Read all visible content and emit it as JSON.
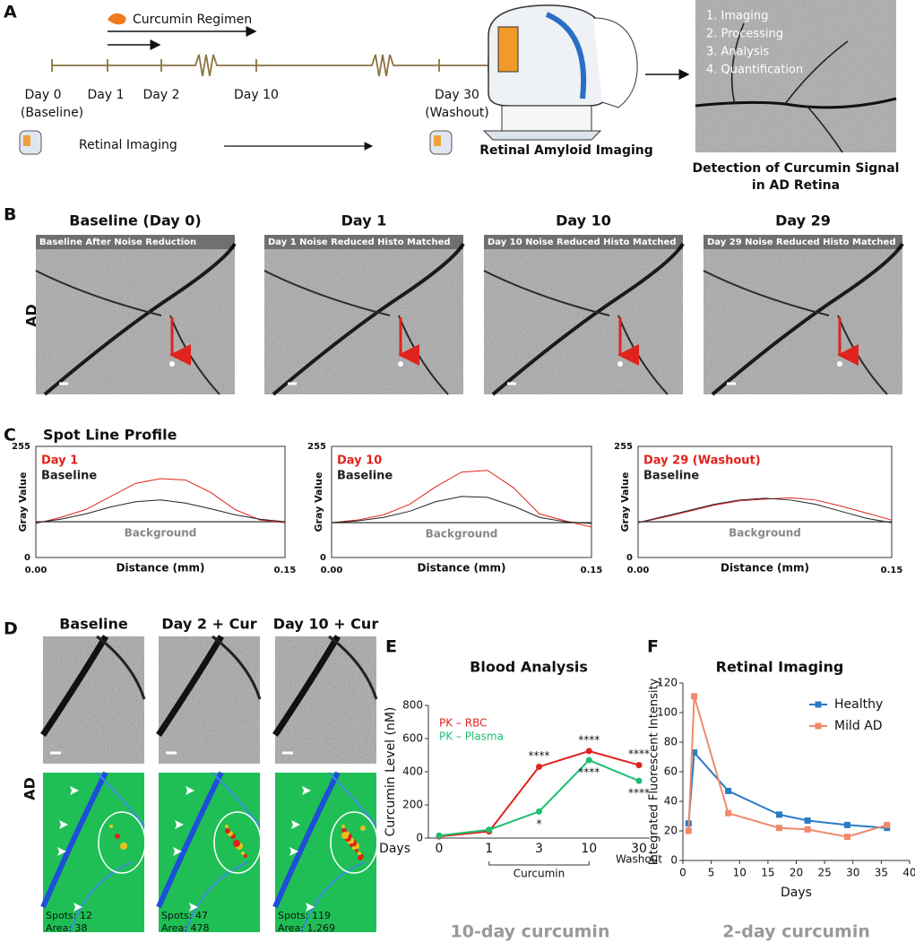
{
  "panel_labels": [
    "A",
    "B",
    "C",
    "D",
    "E",
    "F"
  ],
  "panel_a": {
    "regimen": "Curcumin Regimen",
    "timeline": [
      "Day 0",
      "Day 1",
      "Day 2",
      "Day 10",
      "Day 30"
    ],
    "timeline_notes": [
      "(Baseline)",
      "(Washout)"
    ],
    "imaging": "Retinal Imaging",
    "device_caption": "Retinal Amyloid Imaging",
    "steps": [
      "1. Imaging",
      "2. Processing",
      "3. Analysis",
      "4. Quantification"
    ],
    "detection_caption": [
      "Detection of Curcumin Signal",
      "in AD Retina"
    ]
  },
  "panel_b": {
    "row_label": "AD",
    "titles": [
      "Baseline (Day 0)",
      "Day 1",
      "Day 10",
      "Day 29"
    ],
    "captions": [
      "Baseline After Noise Reduction",
      "Day 1 Noise Reduced Histo Matched",
      "Day 10 Noise Reduced Histo Matched",
      "Day 29 Noise Reduced Histo Matched"
    ]
  },
  "panel_c": {
    "title": "Spot Line Profile"
  },
  "panel_d": {
    "row_label": "AD",
    "titles": [
      "Baseline",
      "Day 2 + Cur",
      "Day 10 + Cur"
    ],
    "stats": [
      [
        "Spots: 12",
        "Area: 38"
      ],
      [
        "Spots: 47",
        "Area: 478"
      ],
      [
        "Spots: 119",
        "Area: 1,269"
      ]
    ]
  },
  "chart_data": [
    {
      "type": "line",
      "y_label": "Gray Value",
      "x_label": "Distance (mm)",
      "xlim": [
        0,
        0.15
      ],
      "xticks": [
        {
          "value": 0,
          "label": "0.00"
        },
        0.15
      ],
      "ylim": [
        0,
        255
      ],
      "yticks": [
        0,
        255
      ],
      "x": [
        0,
        0.015,
        0.03,
        0.045,
        0.06,
        0.075,
        0.09,
        0.105,
        0.12,
        0.135,
        0.15
      ],
      "series": [
        {
          "name": "Day 1",
          "color": "#e0231c",
          "values": [
            78,
            92,
            110,
            140,
            170,
            181,
            178,
            150,
            110,
            86,
            80
          ]
        },
        {
          "name": "Baseline",
          "color": "#222222",
          "values": [
            80,
            88,
            100,
            116,
            128,
            132,
            125,
            112,
            98,
            88,
            82
          ]
        }
      ],
      "reference_line": {
        "label": "Background",
        "value": 82,
        "color": "#888888"
      }
    },
    {
      "type": "line",
      "y_label": "Gray Value",
      "x_label": "Distance (mm)",
      "xlim": [
        0,
        0.15
      ],
      "xticks": [
        {
          "value": 0,
          "label": "0.00"
        },
        0.15
      ],
      "ylim": [
        0,
        255
      ],
      "yticks": [
        0,
        255
      ],
      "x": [
        0,
        0.015,
        0.03,
        0.045,
        0.06,
        0.075,
        0.09,
        0.105,
        0.12,
        0.135,
        0.15
      ],
      "series": [
        {
          "name": "Day 10",
          "color": "#e0231c",
          "values": [
            80,
            86,
            98,
            122,
            162,
            196,
            200,
            160,
            100,
            84,
            70
          ]
        },
        {
          "name": "Baseline",
          "color": "#222222",
          "values": [
            80,
            84,
            92,
            106,
            128,
            140,
            138,
            118,
            92,
            82,
            78
          ]
        }
      ],
      "reference_line": {
        "label": "Background",
        "value": 80,
        "color": "#888888"
      }
    },
    {
      "type": "line",
      "y_label": "Gray Value",
      "x_label": "Distance (mm)",
      "xlim": [
        0,
        0.15
      ],
      "xticks": [
        {
          "value": 0,
          "label": "0.00"
        },
        0.15
      ],
      "ylim": [
        0,
        255
      ],
      "yticks": [
        0,
        255
      ],
      "x": [
        0,
        0.015,
        0.03,
        0.045,
        0.06,
        0.075,
        0.09,
        0.105,
        0.12,
        0.135,
        0.15
      ],
      "series": [
        {
          "name": "Day 29 (Washout)",
          "color": "#e0231c",
          "values": [
            80,
            92,
            106,
            120,
            130,
            134,
            137,
            132,
            118,
            102,
            86
          ]
        },
        {
          "name": "Baseline",
          "color": "#222222",
          "values": [
            80,
            94,
            108,
            122,
            132,
            136,
            132,
            122,
            106,
            90,
            80
          ]
        }
      ],
      "reference_line": {
        "label": "Background",
        "value": 82,
        "color": "#888888"
      }
    },
    {
      "type": "line",
      "title": "Blood Analysis",
      "y_label": "Curcumin Level (nM)",
      "x_label": "Days",
      "categories": [
        "0",
        "1",
        "3",
        "10",
        "30"
      ],
      "ylim": [
        0,
        800
      ],
      "yticks": [
        0,
        200,
        400,
        600,
        800
      ],
      "series": [
        {
          "name": "PK – RBC",
          "color": "#e0231c",
          "values": [
            10,
            40,
            430,
            525,
            440
          ]
        },
        {
          "name": "PK – Plasma",
          "color": "#1dbf73",
          "values": [
            15,
            50,
            160,
            470,
            345
          ]
        }
      ],
      "annotations": [
        {
          "text": "****",
          "series": 0,
          "index": 2
        },
        {
          "text": "*",
          "series": 1,
          "index": 2
        },
        {
          "text": "****",
          "series": 0,
          "index": 3
        },
        {
          "text": "****",
          "series": 1,
          "index": 3
        },
        {
          "text": "****",
          "series": 0,
          "index": 4
        },
        {
          "text": "****",
          "series": 1,
          "index": 4
        }
      ],
      "groups": [
        {
          "label": "Curcumin",
          "from": 1,
          "to": 3
        },
        {
          "label": "Washout",
          "from": 4,
          "to": 4
        }
      ],
      "caption": "10-day curcumin"
    },
    {
      "type": "line",
      "title": "Retinal Imaging",
      "y_label": "Integrated Fluorescent Intensity",
      "x_label": "Days",
      "xlim": [
        0,
        40
      ],
      "xticks": [
        0,
        5,
        10,
        15,
        20,
        25,
        30,
        35,
        40
      ],
      "ylim": [
        0,
        120
      ],
      "yticks": [
        0,
        20,
        40,
        60,
        80,
        100,
        120
      ],
      "legend": "upper right",
      "series": [
        {
          "name": "Healthy",
          "color": "#2a7bc4",
          "x": [
            1,
            2,
            8,
            17,
            22,
            29,
            36
          ],
          "values": [
            25,
            73,
            47,
            31,
            27,
            24,
            22
          ]
        },
        {
          "name": "Mild AD",
          "color": "#ef8a6c",
          "x": [
            1,
            2,
            8,
            17,
            22,
            29,
            36
          ],
          "values": [
            20,
            111,
            32,
            22,
            21,
            16,
            24
          ]
        }
      ],
      "caption": "2-day curcumin"
    }
  ]
}
